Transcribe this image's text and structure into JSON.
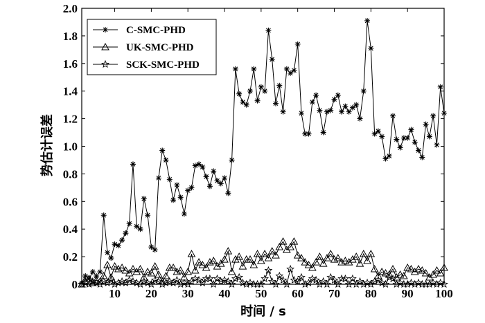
{
  "chart_data": {
    "type": "line",
    "xlabel": "时间 / s",
    "ylabel": "势估计误差",
    "xlim": [
      1,
      100
    ],
    "ylim": [
      0,
      2.0
    ],
    "x_ticks": [
      10,
      20,
      30,
      40,
      50,
      60,
      70,
      80,
      90,
      100
    ],
    "y_ticks": [
      0,
      0.2,
      0.4,
      0.6,
      0.8,
      1.0,
      1.2,
      1.4,
      1.6,
      1.8,
      2.0
    ],
    "y_tick_labels": [
      "0",
      "0.2",
      "0.4",
      "0.6",
      "0.8",
      "1.0",
      "1.2",
      "1.4",
      "1.6",
      "1.8",
      "2.0"
    ],
    "legend_position": "top-left",
    "grid": false,
    "x": [
      1,
      2,
      3,
      4,
      5,
      6,
      7,
      8,
      9,
      10,
      11,
      12,
      13,
      14,
      15,
      16,
      17,
      18,
      19,
      20,
      21,
      22,
      23,
      24,
      25,
      26,
      27,
      28,
      29,
      30,
      31,
      32,
      33,
      34,
      35,
      36,
      37,
      38,
      39,
      40,
      41,
      42,
      43,
      44,
      45,
      46,
      47,
      48,
      49,
      50,
      51,
      52,
      53,
      54,
      55,
      56,
      57,
      58,
      59,
      60,
      61,
      62,
      63,
      64,
      65,
      66,
      67,
      68,
      69,
      70,
      71,
      72,
      73,
      74,
      75,
      76,
      77,
      78,
      79,
      80,
      81,
      82,
      83,
      84,
      85,
      86,
      87,
      88,
      89,
      90,
      91,
      92,
      93,
      94,
      95,
      96,
      97,
      98,
      99,
      100
    ],
    "series": [
      {
        "name": "C-SMC-PHD",
        "marker": "asterisk",
        "values": [
          0.01,
          0.06,
          0.04,
          0.09,
          0.06,
          0.09,
          0.5,
          0.23,
          0.19,
          0.29,
          0.28,
          0.32,
          0.37,
          0.44,
          0.87,
          0.42,
          0.4,
          0.62,
          0.5,
          0.27,
          0.25,
          0.77,
          0.97,
          0.9,
          0.76,
          0.61,
          0.72,
          0.63,
          0.51,
          0.68,
          0.7,
          0.86,
          0.87,
          0.85,
          0.78,
          0.71,
          0.82,
          0.75,
          0.73,
          0.77,
          0.66,
          0.9,
          1.56,
          1.38,
          1.32,
          1.3,
          1.4,
          1.56,
          1.33,
          1.43,
          1.4,
          1.84,
          1.63,
          1.31,
          1.44,
          1.25,
          1.56,
          1.53,
          1.55,
          1.74,
          1.24,
          1.09,
          1.09,
          1.32,
          1.37,
          1.26,
          1.1,
          1.25,
          1.26,
          1.34,
          1.37,
          1.25,
          1.29,
          1.25,
          1.28,
          1.3,
          1.2,
          1.4,
          1.91,
          1.71,
          1.09,
          1.11,
          1.07,
          0.91,
          0.93,
          1.22,
          1.05,
          0.99,
          1.06,
          1.06,
          1.12,
          1.03,
          0.97,
          0.92,
          1.16,
          1.07,
          1.22,
          1.01,
          1.43,
          1.24
        ]
      },
      {
        "name": "UK-SMC-PHD",
        "marker": "triangle",
        "values": [
          0.0,
          0.02,
          0.04,
          0.01,
          0.03,
          0.02,
          0.06,
          0.14,
          0.05,
          0.13,
          0.11,
          0.12,
          0.1,
          0.08,
          0.11,
          0.09,
          0.11,
          0.05,
          0.09,
          0.08,
          0.13,
          0.07,
          0.02,
          0.06,
          0.12,
          0.12,
          0.09,
          0.1,
          0.05,
          0.09,
          0.22,
          0.1,
          0.16,
          0.14,
          0.12,
          0.16,
          0.17,
          0.13,
          0.15,
          0.18,
          0.24,
          0.09,
          0.18,
          0.2,
          0.13,
          0.18,
          0.18,
          0.14,
          0.22,
          0.17,
          0.22,
          0.19,
          0.24,
          0.21,
          0.27,
          0.31,
          0.25,
          0.27,
          0.31,
          0.21,
          0.19,
          0.16,
          0.14,
          0.12,
          0.16,
          0.2,
          0.15,
          0.19,
          0.22,
          0.18,
          0.19,
          0.16,
          0.17,
          0.16,
          0.18,
          0.2,
          0.15,
          0.22,
          0.17,
          0.22,
          0.11,
          0.06,
          0.09,
          0.08,
          0.07,
          0.11,
          0.05,
          0.07,
          0.06,
          0.12,
          0.11,
          0.09,
          0.11,
          0.1,
          0.08,
          0.05,
          0.07,
          0.1,
          0.08,
          0.12
        ]
      },
      {
        "name": "SCK-SMC-PHD",
        "marker": "star",
        "values": [
          0.0,
          0.01,
          0.0,
          0.02,
          0.01,
          0.0,
          0.02,
          0.01,
          0.03,
          0.0,
          0.01,
          0.02,
          0.01,
          0.03,
          0.02,
          0.01,
          0.0,
          0.02,
          0.01,
          0.0,
          0.03,
          0.02,
          0.0,
          0.01,
          0.02,
          0.01,
          0.03,
          0.0,
          0.01,
          0.0,
          0.02,
          0.04,
          0.03,
          0.01,
          0.04,
          0.04,
          0.0,
          0.04,
          0.02,
          0.03,
          0.02,
          0.0,
          0.04,
          0.05,
          0.01,
          0.0,
          0.01,
          0.0,
          0.0,
          0.0,
          0.04,
          0.1,
          0.02,
          0.0,
          0.06,
          0.03,
          0.0,
          0.11,
          0.03,
          0.02,
          0.05,
          0.0,
          0.01,
          0.04,
          0.03,
          0.0,
          0.02,
          0.0,
          0.05,
          0.03,
          0.0,
          0.04,
          0.04,
          0.0,
          0.04,
          0.0,
          0.02,
          0.0,
          0.01,
          0.0,
          0.02,
          0.03,
          0.01,
          0.0,
          0.05,
          0.04,
          0.0,
          0.01,
          0.0,
          0.0,
          0.01,
          0.0,
          0.01,
          0.0,
          0.0,
          0.0,
          0.01,
          0.0,
          0.01,
          0.0
        ]
      }
    ]
  }
}
